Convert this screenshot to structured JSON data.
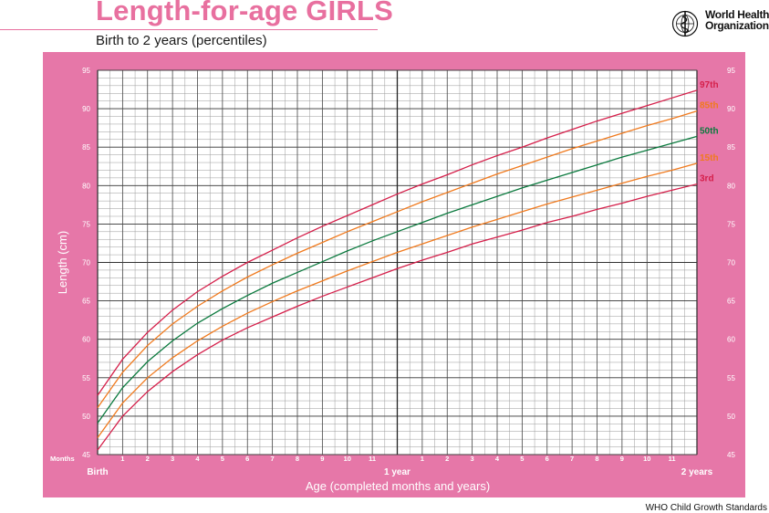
{
  "header": {
    "title": "Length-for-age GIRLS",
    "subtitle": "Birth to 2 years (percentiles)"
  },
  "logo": {
    "line1": "World Health",
    "line2": "Organization",
    "icon": "who-emblem-icon"
  },
  "footer": {
    "source": "WHO Child Growth Standards"
  },
  "colors": {
    "panel": "#e677a8",
    "title": "#e8709f",
    "grid_major": "#333333",
    "p3": "#d51f4a",
    "p15": "#f07a1e",
    "p50": "#0b7a3e",
    "p85": "#f07a1e",
    "p97": "#d51f4a"
  },
  "chart_data": {
    "type": "line",
    "title": "Length-for-age GIRLS",
    "subtitle": "Birth to 2 years (percentiles)",
    "xlabel": "Age (completed months and years)",
    "ylabel": "Length (cm)",
    "xlim": [
      0,
      24
    ],
    "ylim": [
      45,
      95
    ],
    "grid": true,
    "y_ticks": [
      45,
      50,
      55,
      60,
      65,
      70,
      75,
      80,
      85,
      90,
      95
    ],
    "x_month_label": "Months",
    "x_birth_label": "Birth",
    "x_year1_label": "1 year",
    "x_year2_label": "2 years",
    "x_month_ticks": [
      "1",
      "2",
      "3",
      "4",
      "5",
      "6",
      "7",
      "8",
      "9",
      "10",
      "11",
      "1",
      "2",
      "3",
      "4",
      "5",
      "6",
      "7",
      "8",
      "9",
      "10",
      "11"
    ],
    "x": [
      0,
      1,
      2,
      3,
      4,
      5,
      6,
      7,
      8,
      9,
      10,
      11,
      12,
      13,
      14,
      15,
      16,
      17,
      18,
      19,
      20,
      21,
      22,
      23,
      24
    ],
    "series": [
      {
        "name": "3rd",
        "color_key": "p3",
        "values": [
          45.6,
          50.0,
          53.2,
          55.8,
          58.0,
          59.9,
          61.5,
          62.9,
          64.3,
          65.6,
          66.8,
          68.0,
          69.2,
          70.3,
          71.3,
          72.4,
          73.3,
          74.2,
          75.2,
          76.0,
          76.9,
          77.7,
          78.6,
          79.4,
          80.2
        ]
      },
      {
        "name": "15th",
        "color_key": "p15",
        "values": [
          47.2,
          51.7,
          55.0,
          57.6,
          59.8,
          61.7,
          63.4,
          64.9,
          66.3,
          67.6,
          68.9,
          70.1,
          71.3,
          72.4,
          73.5,
          74.6,
          75.6,
          76.6,
          77.6,
          78.5,
          79.4,
          80.3,
          81.2,
          82.0,
          82.9
        ]
      },
      {
        "name": "50th",
        "color_key": "p50",
        "values": [
          49.1,
          53.7,
          57.1,
          59.8,
          62.1,
          64.0,
          65.7,
          67.3,
          68.7,
          70.1,
          71.5,
          72.8,
          74.0,
          75.2,
          76.4,
          77.5,
          78.6,
          79.7,
          80.7,
          81.7,
          82.7,
          83.7,
          84.6,
          85.5,
          86.4
        ]
      },
      {
        "name": "85th",
        "color_key": "p85",
        "values": [
          51.1,
          55.7,
          59.2,
          62.0,
          64.3,
          66.3,
          68.1,
          69.7,
          71.2,
          72.6,
          74.0,
          75.3,
          76.6,
          77.9,
          79.1,
          80.3,
          81.5,
          82.6,
          83.7,
          84.8,
          85.8,
          86.8,
          87.8,
          88.7,
          89.7
        ]
      },
      {
        "name": "97th",
        "color_key": "p97",
        "values": [
          52.7,
          57.4,
          60.9,
          63.8,
          66.2,
          68.2,
          70.0,
          71.6,
          73.2,
          74.7,
          76.1,
          77.5,
          78.9,
          80.2,
          81.4,
          82.7,
          83.9,
          85.0,
          86.2,
          87.3,
          88.4,
          89.4,
          90.4,
          91.4,
          92.4
        ]
      }
    ]
  }
}
